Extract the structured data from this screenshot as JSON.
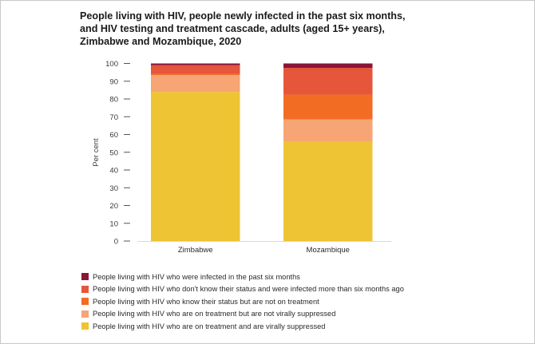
{
  "chart_data": {
    "type": "bar",
    "stacked": true,
    "title_lines": [
      "People living with HIV, people newly infected in the past six months,",
      "and HIV testing and treatment cascade, adults (aged 15+ years),",
      "Zimbabwe and Mozambique, 2020"
    ],
    "xlabel": "",
    "ylabel": "Per cent",
    "ylim": [
      0,
      100
    ],
    "yticks": [
      0,
      10,
      20,
      30,
      40,
      50,
      60,
      70,
      80,
      90,
      100
    ],
    "grid": false,
    "legend_position": "bottom-left",
    "categories": [
      "Zimbabwe",
      "Mozambique"
    ],
    "series": [
      {
        "name": "People living with HIV who are on treatment and are virally suppressed",
        "color": "#EEC434",
        "values": [
          84,
          56
        ]
      },
      {
        "name": "People living with HIV who are on treatment but are not virally suppressed",
        "color": "#F7A574",
        "values": [
          9.5,
          12.5
        ]
      },
      {
        "name": "People living with HIV who know their status but are not on treatment",
        "color": "#F26C24",
        "values": [
          0.5,
          14
        ]
      },
      {
        "name": "People living with HIV who don't know their status and were infected more than six months ago",
        "color": "#E5563A",
        "values": [
          5,
          15
        ]
      },
      {
        "name": "People living with HIV who were infected in the past six months",
        "color": "#8B1538",
        "values": [
          1,
          2.5
        ]
      }
    ],
    "legend_order": [
      4,
      3,
      2,
      1,
      0
    ]
  }
}
